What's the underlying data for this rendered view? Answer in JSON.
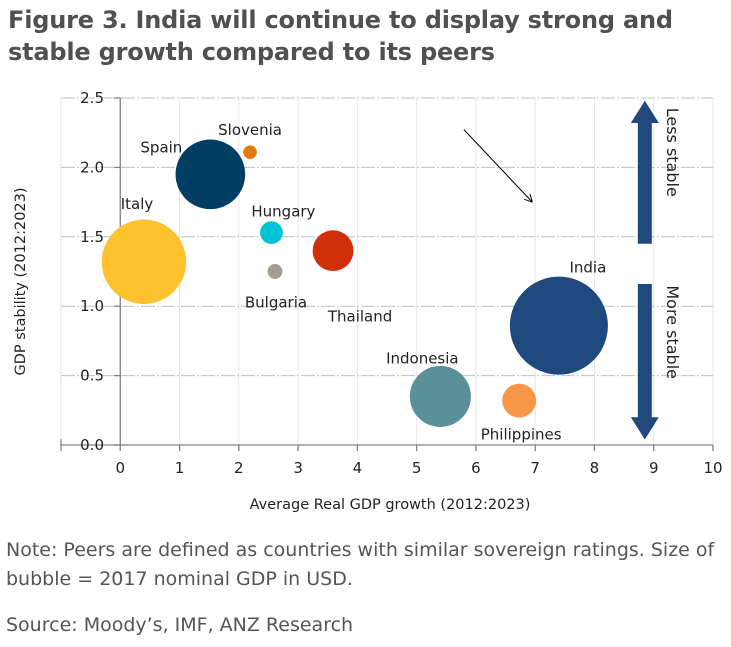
{
  "title_line1": "Figure 3.  India will continue to display strong and",
  "title_line2": "stable growth compared to its peers",
  "note": "Note: Peers are defined as countries with similar sovereign ratings. Size of bubble = 2017 nominal GDP in USD.",
  "source": "Source: Moody’s, IMF, ANZ Research",
  "chart_data": {
    "type": "scatter",
    "subtype": "bubble",
    "title": "Figure 3. India will continue to display strong and stable growth compared to its peers",
    "xlabel": "Average Real GDP growth (2012:2023)",
    "ylabel": "GDP stability (2012:2023)",
    "xlim": [
      -1,
      10
    ],
    "ylim": [
      0,
      2.5
    ],
    "xticks": [
      "0",
      "1",
      "2",
      "3",
      "4",
      "5",
      "6",
      "7",
      "8",
      "9",
      "10"
    ],
    "xtick_values": [
      0,
      1,
      2,
      3,
      4,
      5,
      6,
      7,
      8,
      9,
      10
    ],
    "yticks": [
      "0.0",
      "0.5",
      "1.0",
      "1.5",
      "2.0",
      "2.5"
    ],
    "ytick_values": [
      0,
      0.5,
      1.0,
      1.5,
      2.0,
      2.5
    ],
    "grid": true,
    "bubble_size_meaning": "2017 nominal GDP in USD (relative)",
    "points": [
      {
        "name": "Spain",
        "x": 1.52,
        "y": 1.95,
        "size": 1.31,
        "color": "#003f63"
      },
      {
        "name": "Slovenia",
        "x": 2.19,
        "y": 2.11,
        "size": 0.05,
        "color": "#e07b10"
      },
      {
        "name": "Italy",
        "x": 0.4,
        "y": 1.32,
        "size": 1.93,
        "color": "#fdc32e"
      },
      {
        "name": "Hungary",
        "x": 2.55,
        "y": 1.53,
        "size": 0.14,
        "color": "#00c3d4"
      },
      {
        "name": "Bulgaria",
        "x": 2.61,
        "y": 1.25,
        "size": 0.06,
        "color": "#a89c92"
      },
      {
        "name": "Thailand",
        "x": 3.59,
        "y": 1.4,
        "size": 0.45,
        "color": "#d12e0a"
      },
      {
        "name": "India",
        "x": 7.4,
        "y": 0.86,
        "size": 2.6,
        "color": "#1f497d"
      },
      {
        "name": "Indonesia",
        "x": 5.4,
        "y": 0.35,
        "size": 1.01,
        "color": "#5a9198"
      },
      {
        "name": "Philippines",
        "x": 6.73,
        "y": 0.32,
        "size": 0.31,
        "color": "#f79646"
      }
    ],
    "annotations": [
      {
        "text": "Less stable",
        "direction": "up",
        "color": "#1f497d"
      },
      {
        "text": "More stable",
        "direction": "down",
        "color": "#1f497d"
      },
      {
        "text": "arrow pointing to India",
        "target": "India"
      }
    ]
  }
}
